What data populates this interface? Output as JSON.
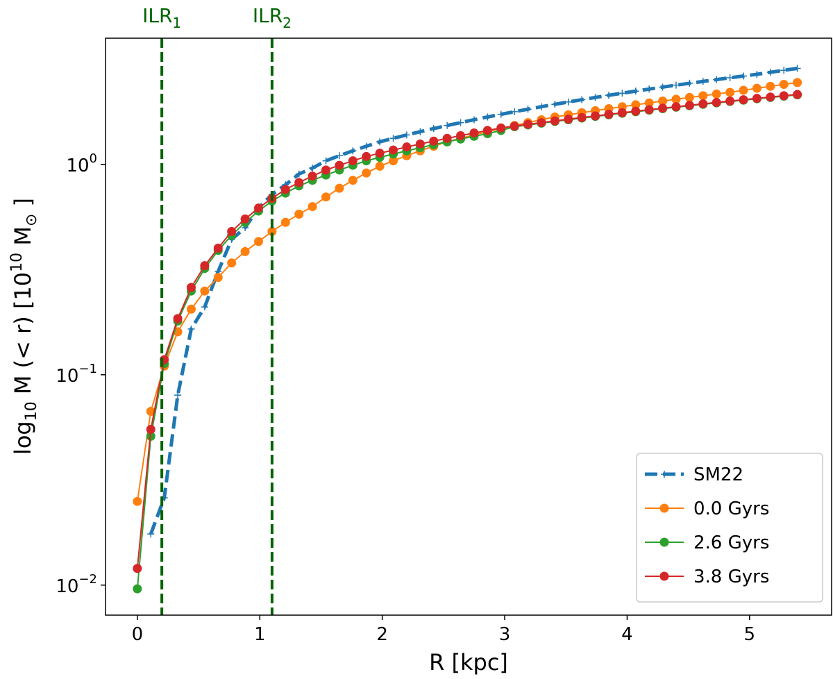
{
  "chart_data": {
    "type": "line",
    "log_y": true,
    "legend": "lower right",
    "xlabel": "R [kpc]",
    "ylabel_parts": [
      "log",
      "10",
      " M (< r) [10",
      "10",
      " M",
      "⊙",
      " ]"
    ],
    "xlim": [
      -0.26,
      5.67
    ],
    "ylim": [
      0.0072,
      3.98
    ],
    "xticks": [
      0,
      1,
      2,
      3,
      4,
      5
    ],
    "yticks": [
      {
        "value": 0.01,
        "label": "10",
        "exponent": "−2"
      },
      {
        "value": 0.1,
        "label": "10",
        "exponent": "−1"
      },
      {
        "value": 1,
        "label": "10",
        "exponent": "0"
      }
    ],
    "vlines": [
      {
        "x": 0.2,
        "label": "ILR",
        "subscript": "1",
        "color": "#006400"
      },
      {
        "x": 1.1,
        "label": "ILR",
        "subscript": "2",
        "color": "#006400"
      }
    ],
    "x": [
      0,
      0.11,
      0.22,
      0.33,
      0.44,
      0.55,
      0.66,
      0.77,
      0.88,
      0.99,
      1.1,
      1.21,
      1.32,
      1.43,
      1.54,
      1.65,
      1.76,
      1.87,
      1.98,
      2.09,
      2.2,
      2.31,
      2.42,
      2.53,
      2.64,
      2.75,
      2.86,
      2.97,
      3.08,
      3.19,
      3.3,
      3.41,
      3.52,
      3.63,
      3.74,
      3.85,
      3.96,
      4.07,
      4.18,
      4.29,
      4.4,
      4.51,
      4.62,
      4.73,
      4.84,
      4.95,
      5.06,
      5.17,
      5.28,
      5.39
    ],
    "series": [
      {
        "name": "SM22",
        "color": "#1f77b4",
        "linestyle": "dashed",
        "marker": "plus",
        "values": [
          null,
          0.0175,
          0.026,
          0.08,
          0.165,
          0.21,
          0.31,
          0.44,
          0.5,
          0.62,
          0.72,
          0.8,
          0.9,
          0.96,
          1.04,
          1.1,
          1.16,
          1.22,
          1.28,
          1.33,
          1.38,
          1.43,
          1.48,
          1.53,
          1.58,
          1.63,
          1.68,
          1.73,
          1.78,
          1.83,
          1.88,
          1.93,
          1.98,
          2.03,
          2.08,
          2.13,
          2.18,
          2.23,
          2.28,
          2.33,
          2.38,
          2.43,
          2.48,
          2.53,
          2.58,
          2.63,
          2.68,
          2.74,
          2.8,
          2.86
        ]
      },
      {
        "name": "0.0 Gyrs",
        "color": "#ff7f0e",
        "linestyle": "solid",
        "marker": "circle",
        "values": [
          0.025,
          0.067,
          0.11,
          0.16,
          0.205,
          0.25,
          0.29,
          0.34,
          0.385,
          0.43,
          0.48,
          0.53,
          0.58,
          0.63,
          0.7,
          0.77,
          0.84,
          0.91,
          0.98,
          1.04,
          1.1,
          1.16,
          1.22,
          1.28,
          1.33,
          1.38,
          1.43,
          1.48,
          1.53,
          1.58,
          1.63,
          1.68,
          1.72,
          1.76,
          1.8,
          1.84,
          1.88,
          1.92,
          1.96,
          2.0,
          2.04,
          2.08,
          2.12,
          2.16,
          2.2,
          2.25,
          2.3,
          2.35,
          2.4,
          2.45
        ]
      },
      {
        "name": "2.6 Gyrs",
        "color": "#2ca02c",
        "linestyle": "solid",
        "marker": "circle",
        "values": [
          0.0096,
          0.051,
          0.113,
          0.18,
          0.25,
          0.32,
          0.39,
          0.46,
          0.53,
          0.6,
          0.67,
          0.73,
          0.79,
          0.84,
          0.89,
          0.94,
          0.99,
          1.04,
          1.08,
          1.12,
          1.16,
          1.2,
          1.24,
          1.28,
          1.32,
          1.36,
          1.4,
          1.45,
          1.51,
          1.54,
          1.57,
          1.6,
          1.63,
          1.66,
          1.69,
          1.72,
          1.75,
          1.78,
          1.81,
          1.84,
          1.87,
          1.9,
          1.93,
          1.96,
          1.99,
          2.02,
          2.05,
          2.08,
          2.11,
          2.14
        ]
      },
      {
        "name": "3.8 Gyrs",
        "color": "#d62728",
        "linestyle": "solid",
        "marker": "circle",
        "values": [
          0.012,
          0.055,
          0.118,
          0.185,
          0.26,
          0.33,
          0.4,
          0.48,
          0.55,
          0.62,
          0.69,
          0.76,
          0.82,
          0.88,
          0.94,
          0.99,
          1.04,
          1.09,
          1.13,
          1.17,
          1.21,
          1.25,
          1.29,
          1.33,
          1.37,
          1.41,
          1.45,
          1.49,
          1.52,
          1.55,
          1.58,
          1.61,
          1.64,
          1.67,
          1.7,
          1.73,
          1.76,
          1.79,
          1.82,
          1.85,
          1.88,
          1.91,
          1.94,
          1.97,
          2.0,
          2.03,
          2.06,
          2.09,
          2.12,
          2.15
        ]
      }
    ]
  }
}
